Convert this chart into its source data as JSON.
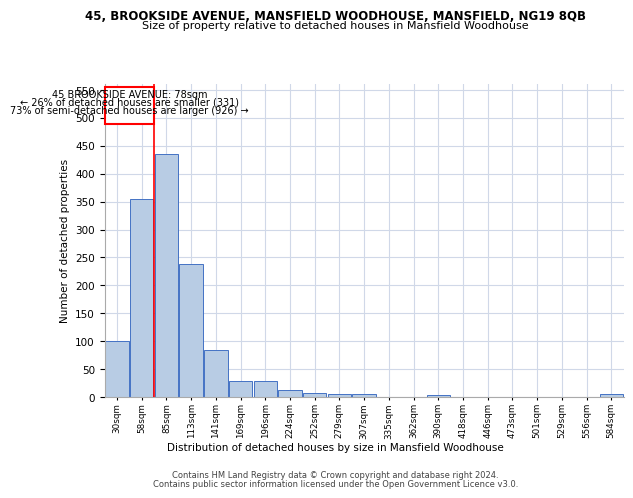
{
  "title_line1": "45, BROOKSIDE AVENUE, MANSFIELD WOODHOUSE, MANSFIELD, NG19 8QB",
  "title_line2": "Size of property relative to detached houses in Mansfield Woodhouse",
  "xlabel": "Distribution of detached houses by size in Mansfield Woodhouse",
  "ylabel": "Number of detached properties",
  "categories": [
    "30sqm",
    "58sqm",
    "85sqm",
    "113sqm",
    "141sqm",
    "169sqm",
    "196sqm",
    "224sqm",
    "252sqm",
    "279sqm",
    "307sqm",
    "335sqm",
    "362sqm",
    "390sqm",
    "418sqm",
    "446sqm",
    "473sqm",
    "501sqm",
    "529sqm",
    "556sqm",
    "584sqm"
  ],
  "values": [
    100,
    355,
    435,
    238,
    85,
    28,
    28,
    13,
    8,
    5,
    5,
    0,
    0,
    4,
    0,
    0,
    0,
    0,
    0,
    0,
    5
  ],
  "bar_color": "#b8cce4",
  "bar_edge_color": "#4472c4",
  "grid_color": "#d0d8e8",
  "annotation_text_line1": "45 BROOKSIDE AVENUE: 78sqm",
  "annotation_text_line2": "← 26% of detached houses are smaller (331)",
  "annotation_text_line3": "73% of semi-detached houses are larger (926) →",
  "vline_x_index": 1,
  "ylim": [
    0,
    560
  ],
  "yticks": [
    0,
    50,
    100,
    150,
    200,
    250,
    300,
    350,
    400,
    450,
    500,
    550
  ],
  "footer_line1": "Contains HM Land Registry data © Crown copyright and database right 2024.",
  "footer_line2": "Contains public sector information licensed under the Open Government Licence v3.0."
}
